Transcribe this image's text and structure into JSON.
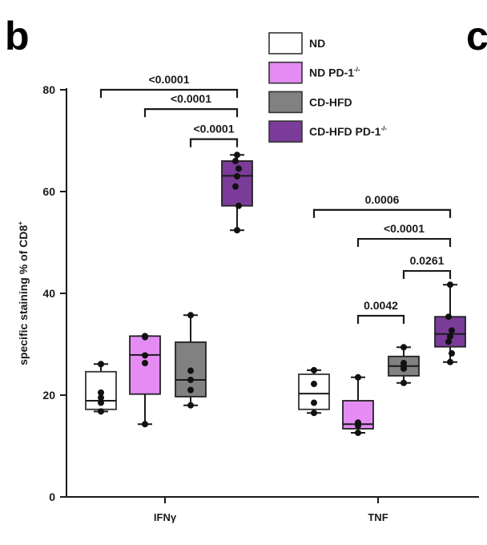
{
  "panel_letters": {
    "left": "b",
    "right": "c"
  },
  "chart_data": {
    "type": "box",
    "title": "",
    "xlabel": "",
    "ylabel": "specific staining % of CD8",
    "ylabel_superscript": "+",
    "ylim": [
      0,
      80
    ],
    "yticks": [
      0,
      20,
      40,
      60,
      80
    ],
    "grid": false,
    "legend_position": "top-center",
    "categories": [
      "IFNγ",
      "TNF"
    ],
    "series": [
      {
        "name": "ND",
        "name_main": "ND",
        "name_sup": "",
        "color": "#ffffff",
        "boxes": [
          {
            "whisker_low": 16.8,
            "q1": 17.2,
            "median": 18.9,
            "q3": 24.6,
            "whisker_high": 26.1,
            "points": [
              26.1,
              20.5,
              19.5,
              18.5,
              16.8
            ]
          },
          {
            "whisker_low": 16.5,
            "q1": 17.2,
            "median": 20.3,
            "q3": 24.1,
            "whisker_high": 24.9,
            "points": [
              24.9,
              22.2,
              18.5,
              16.5
            ]
          }
        ]
      },
      {
        "name": "ND PD-1-/-",
        "name_main": "ND PD-1",
        "name_sup": "-/-",
        "color": "#e48cf4",
        "boxes": [
          {
            "whisker_low": 14.3,
            "q1": 20.2,
            "median": 27.9,
            "q3": 31.6,
            "whisker_high": 31.6,
            "points": [
              31.6,
              31.4,
              27.8,
              26.3,
              14.3
            ]
          },
          {
            "whisker_low": 12.6,
            "q1": 13.4,
            "median": 14.3,
            "q3": 18.9,
            "whisker_high": 23.5,
            "points": [
              23.5,
              14.4,
              14.0,
              14.6,
              12.6
            ]
          }
        ]
      },
      {
        "name": "CD-HFD",
        "name_main": "CD-HFD",
        "name_sup": "",
        "color": "#818181",
        "boxes": [
          {
            "whisker_low": 18.0,
            "q1": 19.7,
            "median": 23.0,
            "q3": 30.4,
            "whisker_high": 35.7,
            "points": [
              35.7,
              24.8,
              23.0,
              21.0,
              18.0
            ]
          },
          {
            "whisker_low": 22.4,
            "q1": 23.8,
            "median": 25.7,
            "q3": 27.6,
            "whisker_high": 29.4,
            "points": [
              29.4,
              26.3,
              25.6,
              25.2,
              22.4
            ]
          }
        ]
      },
      {
        "name": "CD-HFD PD-1-/-",
        "name_main": "CD-HFD PD-1",
        "name_sup": "-/-",
        "color": "#7a3c98",
        "boxes": [
          {
            "whisker_low": 52.4,
            "q1": 57.2,
            "median": 63.1,
            "q3": 66.0,
            "whisker_high": 67.2,
            "points": [
              67.2,
              66.0,
              64.5,
              63.0,
              61.0,
              57.2,
              52.4
            ]
          },
          {
            "whisker_low": 26.5,
            "q1": 29.5,
            "median": 32.0,
            "q3": 35.4,
            "whisker_high": 41.7,
            "points": [
              41.7,
              35.4,
              32.7,
              31.5,
              30.5,
              28.2,
              26.5
            ]
          }
        ]
      }
    ],
    "significance": [
      {
        "category": "IFNγ",
        "from": "ND",
        "to": "CD-HFD PD-1-/-",
        "label": "<0.0001",
        "level": 80.0
      },
      {
        "category": "IFNγ",
        "from": "ND PD-1-/-",
        "to": "CD-HFD PD-1-/-",
        "label": "<0.0001",
        "level": 76.2
      },
      {
        "category": "IFNγ",
        "from": "CD-HFD",
        "to": "CD-HFD PD-1-/-",
        "label": "<0.0001",
        "level": 70.3
      },
      {
        "category": "TNF",
        "from": "ND",
        "to": "CD-HFD PD-1-/-",
        "label": "0.0006",
        "level": 56.4
      },
      {
        "category": "TNF",
        "from": "ND PD-1-/-",
        "to": "CD-HFD PD-1-/-",
        "label": "<0.0001",
        "level": 50.7
      },
      {
        "category": "TNF",
        "from": "CD-HFD",
        "to": "CD-HFD PD-1-/-",
        "label": "0.0261",
        "level": 44.4
      },
      {
        "category": "TNF",
        "from": "ND PD-1-/-",
        "to": "CD-HFD",
        "label": "0.0042",
        "level": 35.6
      }
    ]
  }
}
